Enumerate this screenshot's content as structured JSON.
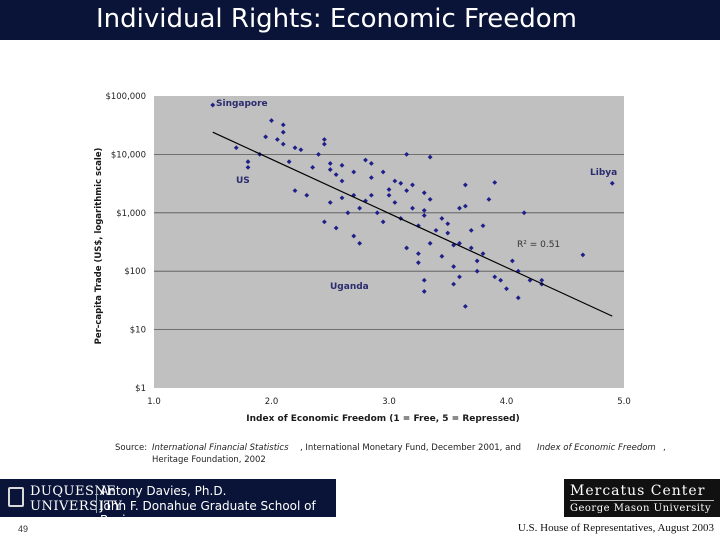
{
  "slide": {
    "title": "Individual Rights: Economic Freedom",
    "page_number": "49",
    "footer_right": "U.S. House of Representatives, August 2003"
  },
  "source": {
    "label": "Source:",
    "ifs": "International Financial Statistics",
    "imf": ", International Monetary Fund, December 2001, and",
    "ief": "Index of Economic Freedom",
    "comma": ",",
    "heritage": "Heritage Foundation, 2002"
  },
  "logos": {
    "duquesne_line1": "DUQUESNE",
    "duquesne_line2": "UNIVERSITY",
    "presenter": "Antony Davies, Ph.D.",
    "school": "John F. Donahue Graduate School of Business",
    "mercatus_top": "Mercatus Center",
    "mercatus_bottom": "George Mason University"
  },
  "colors": {
    "title_bar": "#0a1438",
    "plot_background": "#c0c0c0",
    "marker": "#1f1f8a",
    "trend_line": "#000000",
    "gridline": "#555555"
  },
  "chart_data": {
    "type": "scatter",
    "xlabel": "Index of Economic Freedom (1 = Free, 5 = Repressed)",
    "ylabel": "Per-capita Trade (US$, logarithmic scale)",
    "xlim": [
      1.0,
      5.0
    ],
    "ylim": [
      1,
      100000
    ],
    "y_scale": "log",
    "grid": "horizontal",
    "x_tick_labels": [
      "1.0",
      "2.0",
      "3.0",
      "4.0",
      "5.0"
    ],
    "y_tick_values": [
      1,
      10,
      100,
      1000,
      10000,
      100000
    ],
    "y_tick_labels": [
      "$1",
      "$10",
      "$100",
      "$1,000",
      "$10,000",
      "$100,000"
    ],
    "r_squared_label": "R² = 0.51",
    "trendline": {
      "x": [
        1.5,
        4.9
      ],
      "y": [
        24000,
        17
      ]
    },
    "annotations": [
      {
        "text": "Singapore",
        "x": 1.5,
        "y": 70000
      },
      {
        "text": "US",
        "x": 1.8,
        "y": 6000
      },
      {
        "text": "Libya",
        "x": 4.9,
        "y": 3200
      },
      {
        "text": "Uganda",
        "x": 2.6,
        "y": 100
      }
    ],
    "series": [
      {
        "points": [
          [
            1.5,
            70000
          ],
          [
            1.7,
            13000
          ],
          [
            1.8,
            6000
          ],
          [
            1.8,
            7500
          ],
          [
            1.9,
            10000
          ],
          [
            1.95,
            20000
          ],
          [
            2.0,
            38000
          ],
          [
            2.05,
            18000
          ],
          [
            2.1,
            32000
          ],
          [
            2.1,
            24000
          ],
          [
            2.1,
            15000
          ],
          [
            2.15,
            7500
          ],
          [
            2.2,
            13000
          ],
          [
            2.25,
            12000
          ],
          [
            2.2,
            2400
          ],
          [
            2.3,
            2000
          ],
          [
            2.35,
            6000
          ],
          [
            2.4,
            10000
          ],
          [
            2.45,
            700
          ],
          [
            2.45,
            18000
          ],
          [
            2.45,
            15000
          ],
          [
            2.5,
            7000
          ],
          [
            2.5,
            5500
          ],
          [
            2.5,
            1500
          ],
          [
            2.55,
            4500
          ],
          [
            2.55,
            550
          ],
          [
            2.6,
            6500
          ],
          [
            2.6,
            3500
          ],
          [
            2.6,
            1800
          ],
          [
            2.65,
            1000
          ],
          [
            2.7,
            5000
          ],
          [
            2.7,
            2000
          ],
          [
            2.7,
            400
          ],
          [
            2.75,
            1200
          ],
          [
            2.75,
            300
          ],
          [
            2.8,
            8000
          ],
          [
            2.8,
            1600
          ],
          [
            2.85,
            7000
          ],
          [
            2.85,
            4000
          ],
          [
            2.85,
            2000
          ],
          [
            2.9,
            1000
          ],
          [
            2.95,
            5000
          ],
          [
            2.95,
            700
          ],
          [
            3.0,
            2500
          ],
          [
            3.0,
            2000
          ],
          [
            3.05,
            3500
          ],
          [
            3.05,
            1500
          ],
          [
            3.1,
            800
          ],
          [
            3.1,
            3200
          ],
          [
            3.15,
            2400
          ],
          [
            3.15,
            250
          ],
          [
            3.15,
            10000
          ],
          [
            3.2,
            3000
          ],
          [
            3.2,
            1200
          ],
          [
            3.25,
            600
          ],
          [
            3.25,
            200
          ],
          [
            3.25,
            140
          ],
          [
            3.3,
            2200
          ],
          [
            3.3,
            1100
          ],
          [
            3.3,
            900
          ],
          [
            3.3,
            70
          ],
          [
            3.3,
            45
          ],
          [
            3.35,
            9000
          ],
          [
            3.35,
            1700
          ],
          [
            3.35,
            300
          ],
          [
            3.4,
            500
          ],
          [
            3.45,
            180
          ],
          [
            3.45,
            800
          ],
          [
            3.5,
            450
          ],
          [
            3.5,
            650
          ],
          [
            3.55,
            120
          ],
          [
            3.55,
            60
          ],
          [
            3.55,
            280
          ],
          [
            3.6,
            1200
          ],
          [
            3.6,
            300
          ],
          [
            3.6,
            80
          ],
          [
            3.65,
            3000
          ],
          [
            3.65,
            1300
          ],
          [
            3.65,
            25
          ],
          [
            3.7,
            500
          ],
          [
            3.7,
            250
          ],
          [
            3.75,
            150
          ],
          [
            3.75,
            100
          ],
          [
            3.8,
            600
          ],
          [
            3.8,
            200
          ],
          [
            3.85,
            1700
          ],
          [
            3.9,
            3300
          ],
          [
            3.9,
            80
          ],
          [
            3.95,
            70
          ],
          [
            4.0,
            50
          ],
          [
            4.05,
            150
          ],
          [
            4.1,
            100
          ],
          [
            4.1,
            35
          ],
          [
            4.15,
            1000
          ],
          [
            4.2,
            70
          ],
          [
            4.3,
            70
          ],
          [
            4.3,
            60
          ],
          [
            4.65,
            190
          ],
          [
            4.9,
            3200
          ]
        ]
      }
    ]
  }
}
